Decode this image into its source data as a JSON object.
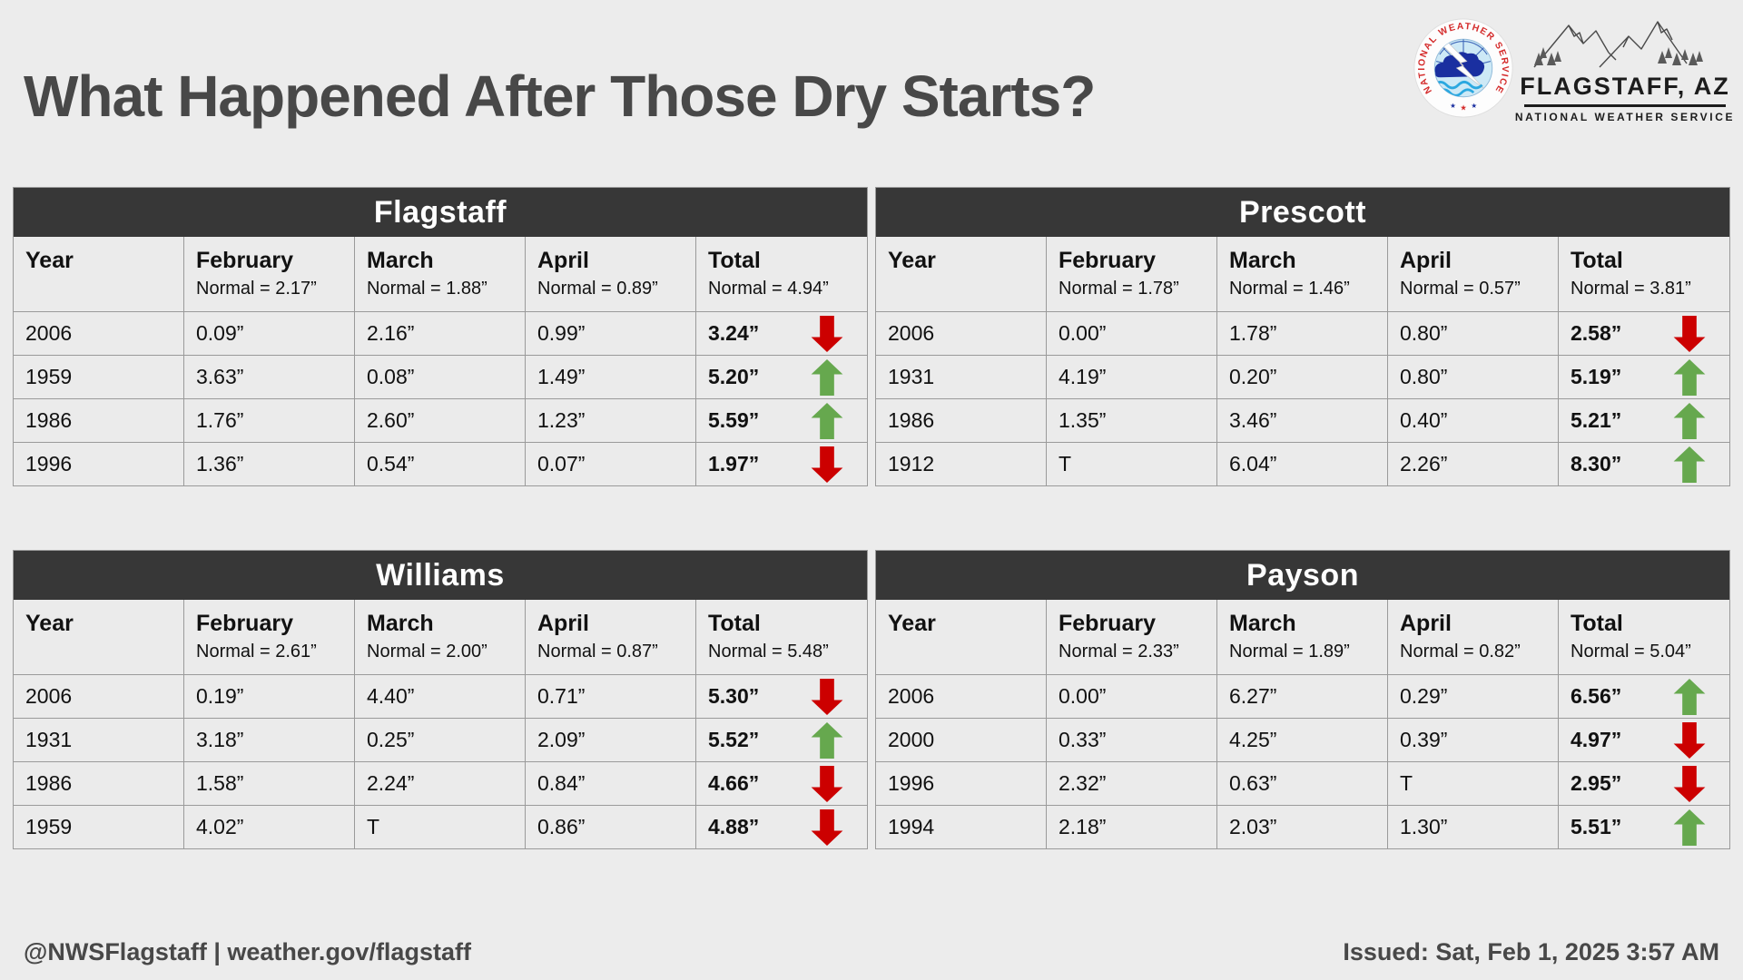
{
  "title": "What Happened After Those Dry Starts?",
  "logos": {
    "nws_seal_ring_text": "NATIONAL WEATHER SERVICE",
    "nws_seal_stars": "★ ★ ★",
    "flagstaff_title": "FLAGSTAFF, AZ",
    "flagstaff_subtitle": "NATIONAL WEATHER SERVICE"
  },
  "footer": {
    "left": "@NWSFlagstaff | weather.gov/flagstaff",
    "right": "Issued: Sat, Feb 1, 2025 3:57 AM"
  },
  "colors": {
    "page_bg": "#ececec",
    "table_header_bg": "#373737",
    "table_header_text": "#ffffff",
    "cell_bg": "#ebebeb",
    "border": "#9a9a9a",
    "text": "#111111",
    "title_text": "#484848",
    "up_arrow": "#66a84e",
    "down_arrow": "#cc0000",
    "nws_red": "#d42a2a",
    "nws_blue": "#1a2fa0"
  },
  "tables": [
    {
      "name": "Flagstaff",
      "headers": [
        {
          "label": "Year",
          "normal": ""
        },
        {
          "label": "February",
          "normal": "Normal = 2.17”"
        },
        {
          "label": "March",
          "normal": "Normal = 1.88”"
        },
        {
          "label": "April",
          "normal": "Normal = 0.89”"
        },
        {
          "label": "Total",
          "normal": "Normal = 4.94”"
        }
      ],
      "rows": [
        {
          "year": "2006",
          "february": "0.09”",
          "march": "2.16”",
          "april": "0.99”",
          "total": "3.24”",
          "trend": "down"
        },
        {
          "year": "1959",
          "february": "3.63”",
          "march": "0.08”",
          "april": "1.49”",
          "total": "5.20”",
          "trend": "up"
        },
        {
          "year": "1986",
          "february": "1.76”",
          "march": "2.60”",
          "april": "1.23”",
          "total": "5.59”",
          "trend": "up"
        },
        {
          "year": "1996",
          "february": "1.36”",
          "march": "0.54”",
          "april": "0.07”",
          "total": "1.97”",
          "trend": "down"
        }
      ]
    },
    {
      "name": "Prescott",
      "headers": [
        {
          "label": "Year",
          "normal": ""
        },
        {
          "label": "February",
          "normal": "Normal = 1.78”"
        },
        {
          "label": "March",
          "normal": "Normal = 1.46”"
        },
        {
          "label": "April",
          "normal": "Normal = 0.57”"
        },
        {
          "label": "Total",
          "normal": "Normal = 3.81”"
        }
      ],
      "rows": [
        {
          "year": "2006",
          "february": "0.00”",
          "march": "1.78”",
          "april": "0.80”",
          "total": "2.58”",
          "trend": "down"
        },
        {
          "year": "1931",
          "february": "4.19”",
          "march": "0.20”",
          "april": "0.80”",
          "total": "5.19”",
          "trend": "up"
        },
        {
          "year": "1986",
          "february": "1.35”",
          "march": "3.46”",
          "april": "0.40”",
          "total": "5.21”",
          "trend": "up"
        },
        {
          "year": "1912",
          "february": "T",
          "march": "6.04”",
          "april": "2.26”",
          "total": "8.30”",
          "trend": "up"
        }
      ]
    },
    {
      "name": "Williams",
      "headers": [
        {
          "label": "Year",
          "normal": ""
        },
        {
          "label": "February",
          "normal": "Normal = 2.61”"
        },
        {
          "label": "March",
          "normal": "Normal = 2.00”"
        },
        {
          "label": "April",
          "normal": "Normal = 0.87”"
        },
        {
          "label": "Total",
          "normal": "Normal = 5.48”"
        }
      ],
      "rows": [
        {
          "year": "2006",
          "february": "0.19”",
          "march": "4.40”",
          "april": "0.71”",
          "total": "5.30”",
          "trend": "down"
        },
        {
          "year": "1931",
          "february": "3.18”",
          "march": "0.25”",
          "april": "2.09”",
          "total": "5.52”",
          "trend": "up"
        },
        {
          "year": "1986",
          "february": "1.58”",
          "march": "2.24”",
          "april": "0.84”",
          "total": "4.66”",
          "trend": "down"
        },
        {
          "year": "1959",
          "february": "4.02”",
          "march": "T",
          "april": "0.86”",
          "total": "4.88”",
          "trend": "down"
        }
      ]
    },
    {
      "name": "Payson",
      "headers": [
        {
          "label": "Year",
          "normal": ""
        },
        {
          "label": "February",
          "normal": "Normal = 2.33”"
        },
        {
          "label": "March",
          "normal": "Normal = 1.89”"
        },
        {
          "label": "April",
          "normal": "Normal = 0.82”"
        },
        {
          "label": "Total",
          "normal": "Normal = 5.04”"
        }
      ],
      "rows": [
        {
          "year": "2006",
          "february": "0.00”",
          "march": "6.27”",
          "april": "0.29”",
          "total": "6.56”",
          "trend": "up"
        },
        {
          "year": "2000",
          "february": "0.33”",
          "march": "4.25”",
          "april": "0.39”",
          "total": "4.97”",
          "trend": "down"
        },
        {
          "year": "1996",
          "february": "2.32”",
          "march": "0.63”",
          "april": "T",
          "total": "2.95”",
          "trend": "down"
        },
        {
          "year": "1994",
          "february": "2.18”",
          "march": "2.03”",
          "april": "1.30”",
          "total": "5.51”",
          "trend": "up"
        }
      ]
    }
  ],
  "chart_data": [
    {
      "type": "table",
      "title": "Flagstaff",
      "units": "inches",
      "columns": [
        "Year",
        "February",
        "March",
        "April",
        "Total"
      ],
      "normals": {
        "February": 2.17,
        "March": 1.88,
        "April": 0.89,
        "Total": 4.94
      },
      "rows": [
        {
          "year": 2006,
          "february": 0.09,
          "march": 2.16,
          "april": 0.99,
          "total": 3.24,
          "trend": "down"
        },
        {
          "year": 1959,
          "february": 3.63,
          "march": 0.08,
          "april": 1.49,
          "total": 5.2,
          "trend": "up"
        },
        {
          "year": 1986,
          "february": 1.76,
          "march": 2.6,
          "april": 1.23,
          "total": 5.59,
          "trend": "up"
        },
        {
          "year": 1996,
          "february": 1.36,
          "march": 0.54,
          "april": 0.07,
          "total": 1.97,
          "trend": "down"
        }
      ]
    },
    {
      "type": "table",
      "title": "Prescott",
      "units": "inches",
      "columns": [
        "Year",
        "February",
        "March",
        "April",
        "Total"
      ],
      "normals": {
        "February": 1.78,
        "March": 1.46,
        "April": 0.57,
        "Total": 3.81
      },
      "rows": [
        {
          "year": 2006,
          "february": 0.0,
          "march": 1.78,
          "april": 0.8,
          "total": 2.58,
          "trend": "down"
        },
        {
          "year": 1931,
          "february": 4.19,
          "march": 0.2,
          "april": 0.8,
          "total": 5.19,
          "trend": "up"
        },
        {
          "year": 1986,
          "february": 1.35,
          "march": 3.46,
          "april": 0.4,
          "total": 5.21,
          "trend": "up"
        },
        {
          "year": 1912,
          "february": "T",
          "march": 6.04,
          "april": 2.26,
          "total": 8.3,
          "trend": "up"
        }
      ]
    },
    {
      "type": "table",
      "title": "Williams",
      "units": "inches",
      "columns": [
        "Year",
        "February",
        "March",
        "April",
        "Total"
      ],
      "normals": {
        "February": 2.61,
        "March": 2.0,
        "April": 0.87,
        "Total": 5.48
      },
      "rows": [
        {
          "year": 2006,
          "february": 0.19,
          "march": 4.4,
          "april": 0.71,
          "total": 5.3,
          "trend": "down"
        },
        {
          "year": 1931,
          "february": 3.18,
          "march": 0.25,
          "april": 2.09,
          "total": 5.52,
          "trend": "up"
        },
        {
          "year": 1986,
          "february": 1.58,
          "march": 2.24,
          "april": 0.84,
          "total": 4.66,
          "trend": "down"
        },
        {
          "year": 1959,
          "february": 4.02,
          "march": "T",
          "april": 0.86,
          "total": 4.88,
          "trend": "down"
        }
      ]
    },
    {
      "type": "table",
      "title": "Payson",
      "units": "inches",
      "columns": [
        "Year",
        "February",
        "March",
        "April",
        "Total"
      ],
      "normals": {
        "February": 2.33,
        "March": 1.89,
        "April": 0.82,
        "Total": 5.04
      },
      "rows": [
        {
          "year": 2006,
          "february": 0.0,
          "march": 6.27,
          "april": 0.29,
          "total": 6.56,
          "trend": "up"
        },
        {
          "year": 2000,
          "february": 0.33,
          "march": 4.25,
          "april": 0.39,
          "total": 4.97,
          "trend": "down"
        },
        {
          "year": 1996,
          "february": 2.32,
          "march": 0.63,
          "april": "T",
          "total": 2.95,
          "trend": "down"
        },
        {
          "year": 1994,
          "february": 2.18,
          "march": 2.03,
          "april": 1.3,
          "total": 5.51,
          "trend": "up"
        }
      ]
    }
  ]
}
